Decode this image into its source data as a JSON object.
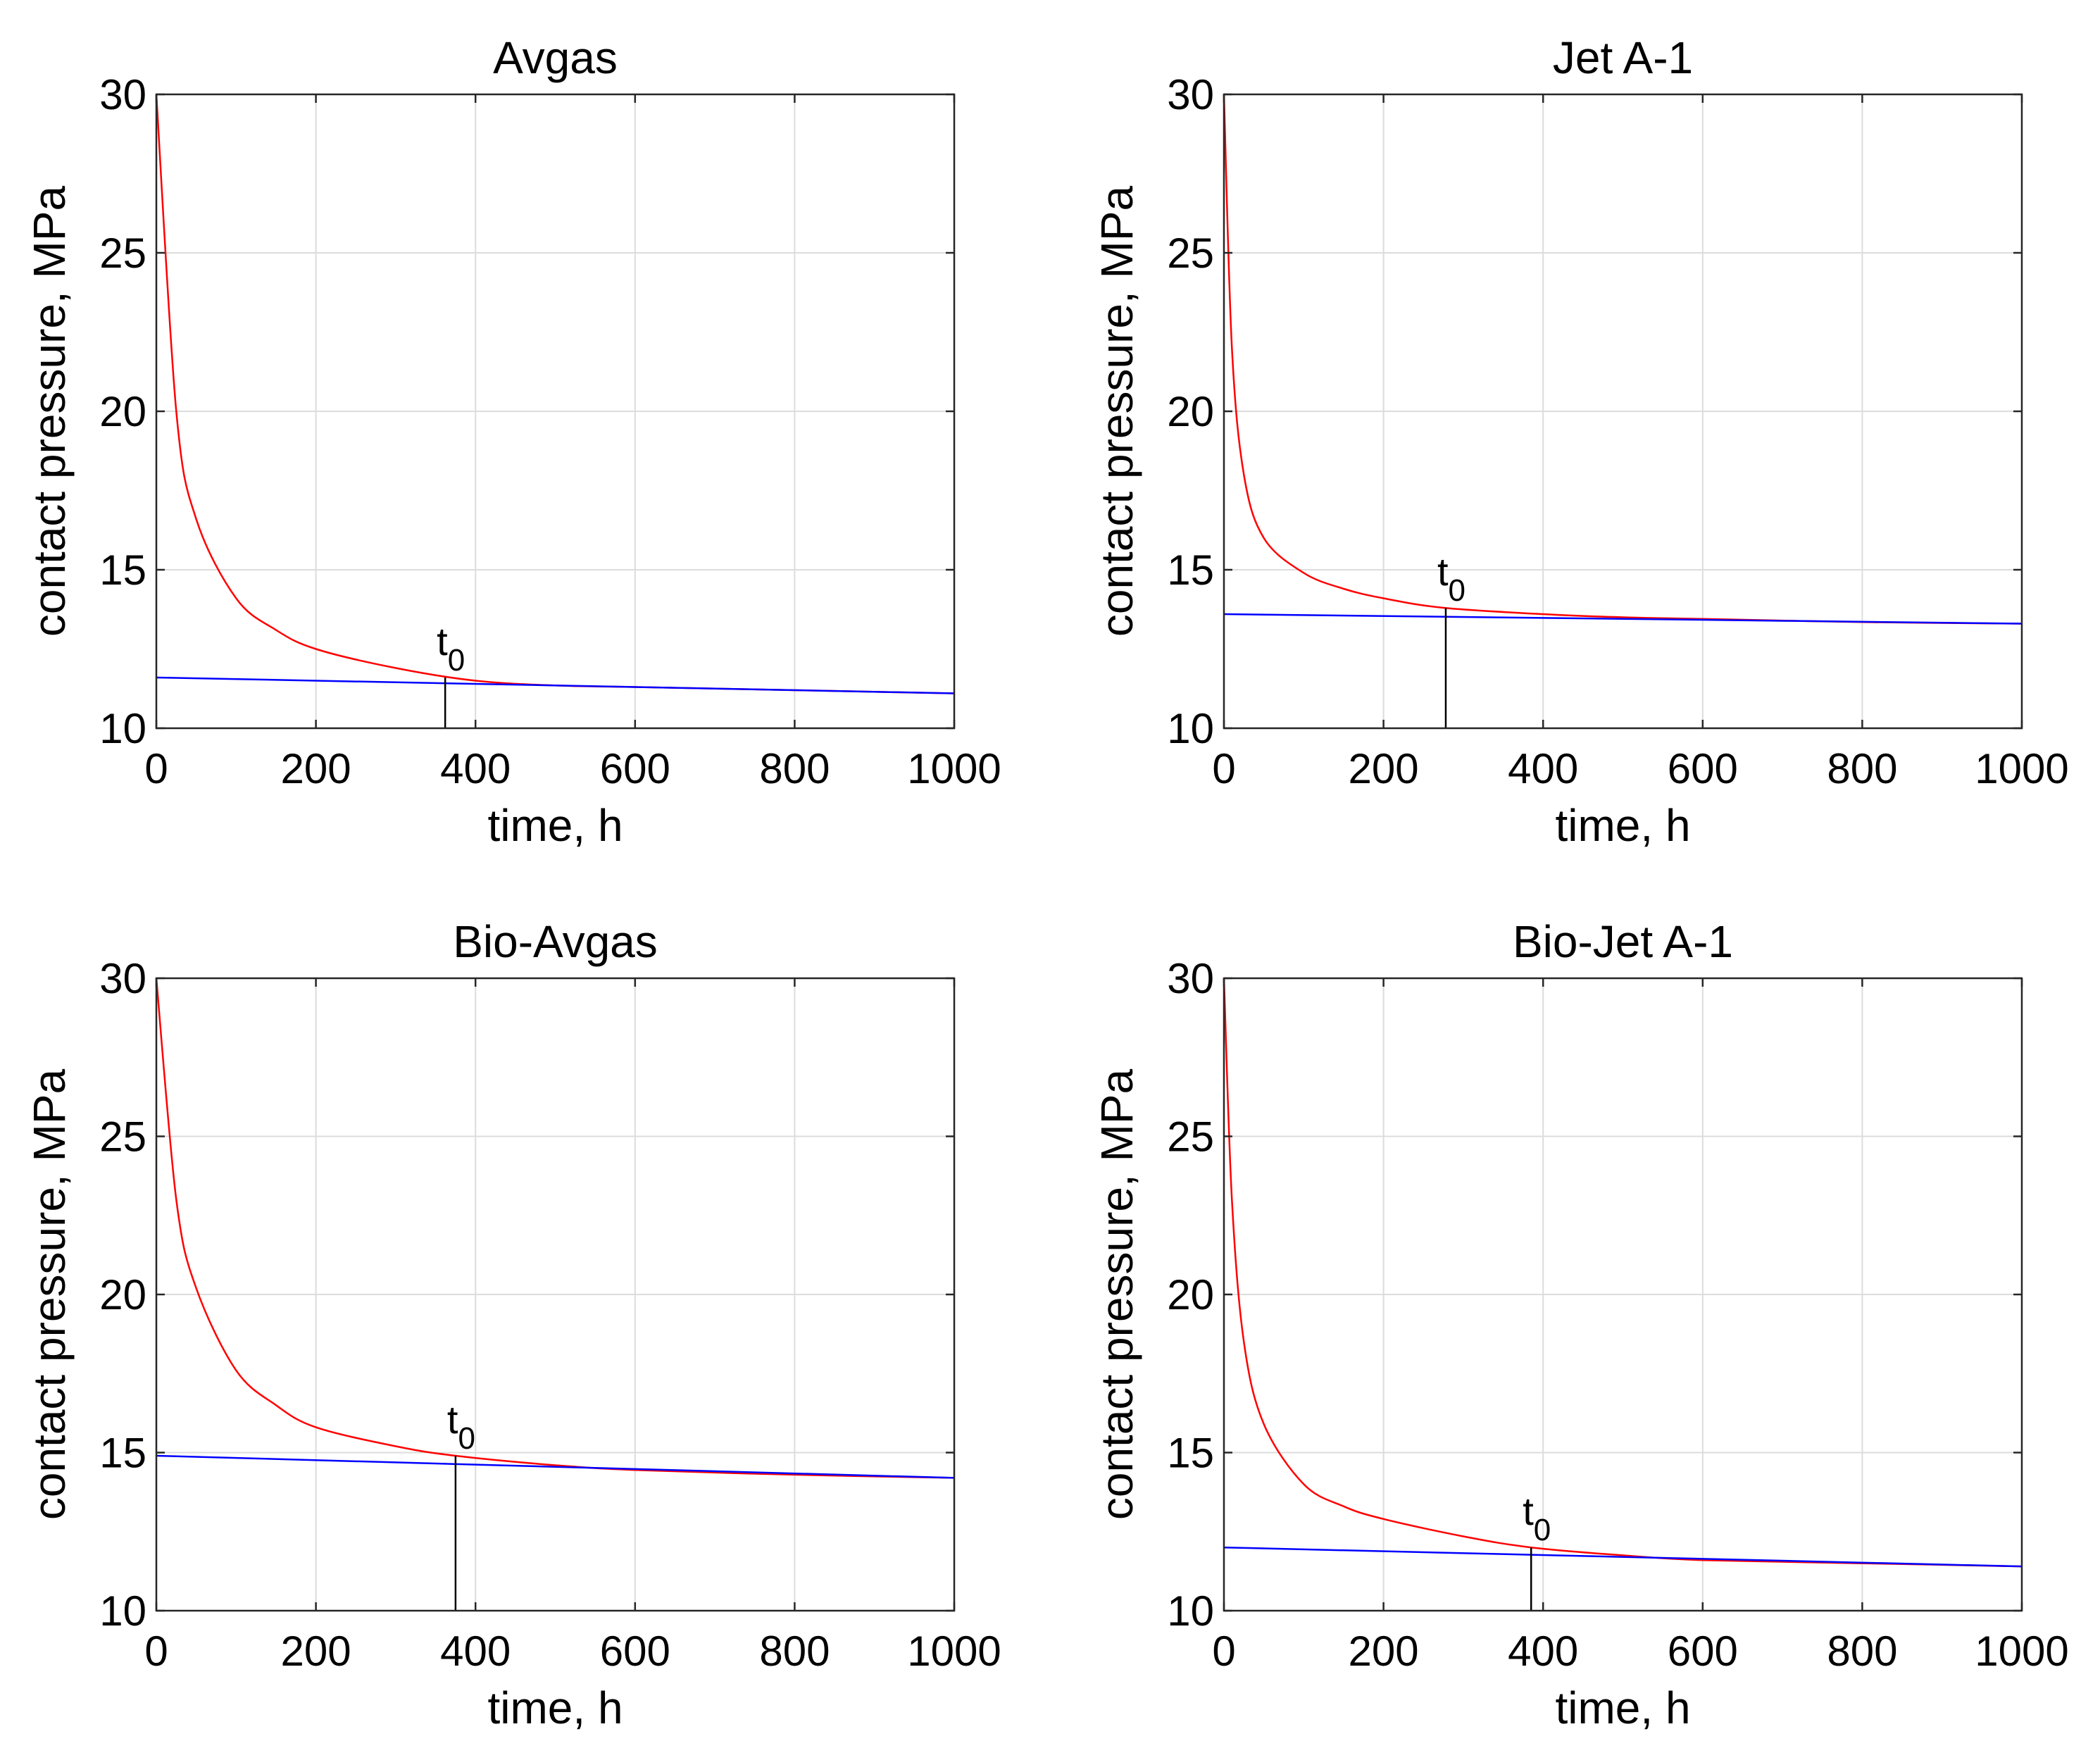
{
  "chart_data": [
    {
      "type": "line",
      "title": "Avgas",
      "xlabel": "time, h",
      "ylabel": "contact pressure, MPa",
      "xlim": [
        0,
        1000
      ],
      "ylim": [
        10,
        30
      ],
      "xticks": [
        "0",
        "200",
        "400",
        "600",
        "800",
        "1000"
      ],
      "yticks": [
        "10",
        "15",
        "20",
        "25",
        "30"
      ],
      "grid": true,
      "series": [
        {
          "color": "#ff0000",
          "x": [
            0,
            25,
            50,
            100,
            150,
            200,
            300,
            400,
            500,
            600,
            800,
            1000
          ],
          "y": [
            30.0,
            20.0,
            16.6,
            14.1,
            13.1,
            12.5,
            11.9,
            11.5,
            11.35,
            11.3,
            11.2,
            11.1
          ]
        },
        {
          "color": "#0000ff",
          "x": [
            0,
            1000
          ],
          "y": [
            11.6,
            11.1
          ]
        }
      ],
      "marker": {
        "label_t": "t",
        "label_sub": "0",
        "x": 362,
        "y": 11.6
      }
    },
    {
      "type": "line",
      "title": "Jet A-1",
      "xlabel": "time, h",
      "ylabel": "contact pressure, MPa",
      "xlim": [
        0,
        1000
      ],
      "ylim": [
        10,
        30
      ],
      "xticks": [
        "0",
        "200",
        "400",
        "600",
        "800",
        "1000"
      ],
      "yticks": [
        "10",
        "15",
        "20",
        "25",
        "30"
      ],
      "grid": true,
      "series": [
        {
          "color": "#ff0000",
          "x": [
            0,
            10,
            25,
            50,
            100,
            150,
            200,
            275,
            400,
            500,
            600,
            800,
            1000
          ],
          "y": [
            30.0,
            22.0,
            18.0,
            16.0,
            14.9,
            14.4,
            14.1,
            13.8,
            13.6,
            13.5,
            13.45,
            13.35,
            13.3
          ]
        },
        {
          "color": "#0000ff",
          "x": [
            0,
            1000
          ],
          "y": [
            13.6,
            13.3
          ]
        }
      ],
      "marker": {
        "label_t": "t",
        "label_sub": "0",
        "x": 278,
        "y": 13.8
      }
    },
    {
      "type": "line",
      "title": "Bio-Avgas",
      "xlabel": "time, h",
      "ylabel": "contact pressure, MPa",
      "xlim": [
        0,
        1000
      ],
      "ylim": [
        10,
        30
      ],
      "xticks": [
        "0",
        "200",
        "400",
        "600",
        "800",
        "1000"
      ],
      "yticks": [
        "10",
        "15",
        "20",
        "25",
        "30"
      ],
      "grid": true,
      "series": [
        {
          "color": "#ff0000",
          "x": [
            0,
            25,
            50,
            100,
            150,
            200,
            300,
            375,
            500,
            600,
            800,
            1000
          ],
          "y": [
            30.0,
            23.0,
            20.2,
            17.6,
            16.5,
            15.8,
            15.2,
            14.9,
            14.6,
            14.45,
            14.3,
            14.2
          ]
        },
        {
          "color": "#0000ff",
          "x": [
            0,
            1000
          ],
          "y": [
            14.9,
            14.2
          ]
        }
      ],
      "marker": {
        "label_t": "t",
        "label_sub": "0",
        "x": 375,
        "y": 14.9
      }
    },
    {
      "type": "line",
      "title": "Bio-Jet A-1",
      "xlabel": "time, h",
      "ylabel": "contact pressure, MPa",
      "xlim": [
        0,
        1000
      ],
      "ylim": [
        10,
        30
      ],
      "xticks": [
        "0",
        "200",
        "400",
        "600",
        "800",
        "1000"
      ],
      "yticks": [
        "10",
        "15",
        "20",
        "25",
        "30"
      ],
      "grid": true,
      "series": [
        {
          "color": "#ff0000",
          "x": [
            0,
            10,
            25,
            50,
            100,
            150,
            200,
            300,
            385,
            500,
            600,
            800,
            1000
          ],
          "y": [
            30.0,
            23.0,
            18.5,
            15.9,
            14.0,
            13.3,
            12.9,
            12.35,
            12.0,
            11.75,
            11.6,
            11.5,
            11.4
          ]
        },
        {
          "color": "#0000ff",
          "x": [
            0,
            1000
          ],
          "y": [
            12.0,
            11.4
          ]
        }
      ],
      "marker": {
        "label_t": "t",
        "label_sub": "0",
        "x": 385,
        "y": 12.0
      }
    }
  ]
}
